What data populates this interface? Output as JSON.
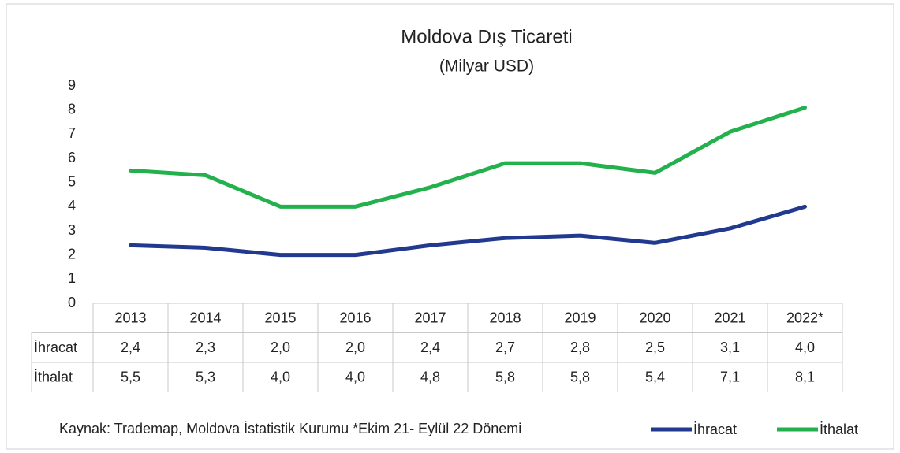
{
  "chart_data": {
    "type": "line",
    "title": "Moldova Dış Ticareti",
    "subtitle": "(Milyar USD)",
    "categories": [
      "2013",
      "2014",
      "2015",
      "2016",
      "2017",
      "2018",
      "2019",
      "2020",
      "2021",
      "2022*"
    ],
    "series": [
      {
        "name": "İhracat",
        "color": "#213a8f",
        "values": [
          2.4,
          2.3,
          2.0,
          2.0,
          2.4,
          2.7,
          2.8,
          2.5,
          3.1,
          4.0
        ],
        "value_labels": [
          "2,4",
          "2,3",
          "2,0",
          "2,0",
          "2,4",
          "2,7",
          "2,8",
          "2,5",
          "3,1",
          "4,0"
        ]
      },
      {
        "name": "İthalat",
        "color": "#22b14c",
        "values": [
          5.5,
          5.3,
          4.0,
          4.0,
          4.8,
          5.8,
          5.8,
          5.4,
          7.1,
          8.1
        ],
        "value_labels": [
          "5,5",
          "5,3",
          "4,0",
          "4,0",
          "4,8",
          "5,8",
          "5,8",
          "5,4",
          "7,1",
          "8,1"
        ]
      }
    ],
    "ylim": [
      0,
      9
    ],
    "yticks": [
      0,
      1,
      2,
      3,
      4,
      5,
      6,
      7,
      8,
      9
    ],
    "source": "Kaynak: Trademap, Moldova İstatistik Kurumu *Ekim 21- Eylül 22 Dönemi",
    "legend": "bottom-right"
  }
}
